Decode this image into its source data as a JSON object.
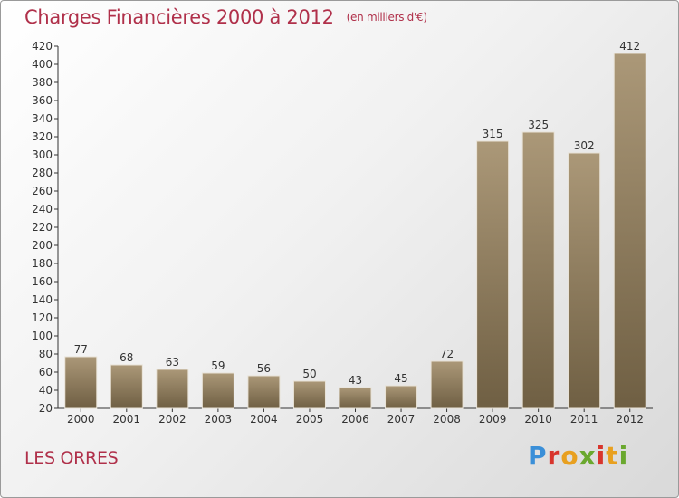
{
  "header": {
    "title": "Charges Financières 2000 à 2012",
    "subtitle": "(en milliers d'€)"
  },
  "footer": {
    "commune": "LES ORRES",
    "logo_text": "Proxiti"
  },
  "colors": {
    "title": "#b0304a",
    "bar_top": "#ab9878",
    "bar_bottom": "#6f5f43",
    "axis": "#333333"
  },
  "chart_data": {
    "type": "bar",
    "categories": [
      "2000",
      "2001",
      "2002",
      "2003",
      "2004",
      "2005",
      "2006",
      "2007",
      "2008",
      "2009",
      "2010",
      "2011",
      "2012"
    ],
    "values": [
      77,
      68,
      63,
      59,
      56,
      50,
      43,
      45,
      72,
      315,
      325,
      302,
      412
    ],
    "ylim": [
      20,
      420
    ],
    "ytick_step": 20,
    "grid": false,
    "data_labels": true
  }
}
